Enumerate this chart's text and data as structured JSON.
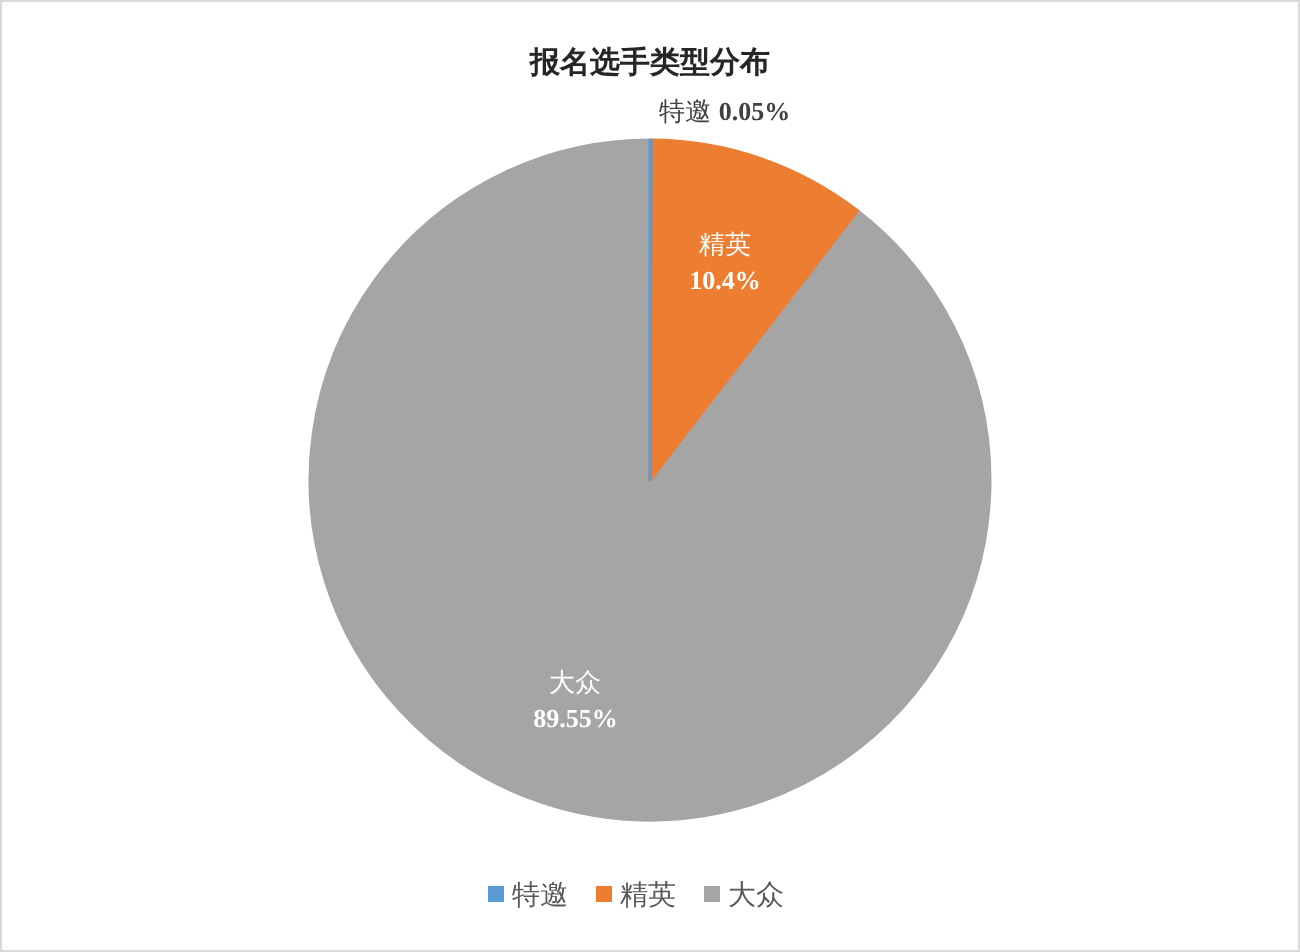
{
  "chart_data": {
    "type": "pie",
    "title": "报名选手类型分布",
    "categories": [
      "特邀",
      "精英",
      "大众"
    ],
    "values": [
      0.05,
      10.4,
      89.55
    ],
    "colors": [
      "#5b9bd5",
      "#ed7d31",
      "#a5a5a5"
    ],
    "value_labels": [
      "0.05%",
      "10.4%",
      "89.55%"
    ],
    "legend": "bottom"
  }
}
